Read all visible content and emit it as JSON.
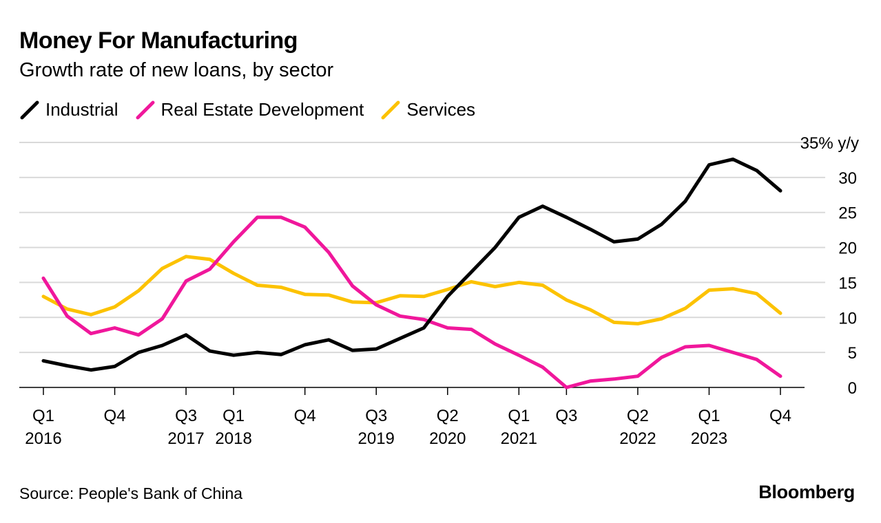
{
  "header": {
    "title": "Money For Manufacturing",
    "subtitle": "Growth rate of new loans, by sector"
  },
  "footer": {
    "source": "Source: People's Bank of China",
    "brand": "Bloomberg"
  },
  "colors": {
    "Industrial": "#000000",
    "Real Estate Development": "#f0179b",
    "Services": "#fcc200",
    "grid": "#d9d9d9"
  },
  "chart_data": {
    "type": "line",
    "title": "Money For Manufacturing",
    "subtitle": "Growth rate of new loans, by sector",
    "unit_label": "35% y/y",
    "ylim": [
      0,
      35
    ],
    "y_ticks": [
      0,
      5,
      10,
      15,
      20,
      25,
      30
    ],
    "grid": true,
    "legend_position": "top-left",
    "x": [
      "Q1 2016",
      "Q2 2016",
      "Q3 2016",
      "Q4 2016",
      "Q1 2017",
      "Q2 2017",
      "Q3 2017",
      "Q4 2017",
      "Q1 2018",
      "Q2 2018",
      "Q3 2018",
      "Q4 2018",
      "Q1 2019",
      "Q2 2019",
      "Q3 2019",
      "Q4 2019",
      "Q1 2020",
      "Q2 2020",
      "Q3 2020",
      "Q4 2020",
      "Q1 2021",
      "Q2 2021",
      "Q3 2021",
      "Q4 2021",
      "Q1 2022",
      "Q2 2022",
      "Q3 2022",
      "Q4 2022",
      "Q1 2023",
      "Q2 2023",
      "Q3 2023",
      "Q4 2023"
    ],
    "x_tick_labels": [
      {
        "index": 0,
        "quarter": "Q1",
        "year": "2016"
      },
      {
        "index": 3,
        "quarter": "Q4",
        "year": ""
      },
      {
        "index": 6,
        "quarter": "Q3",
        "year": "2017"
      },
      {
        "index": 8,
        "quarter": "Q1",
        "year": "2018"
      },
      {
        "index": 11,
        "quarter": "Q4",
        "year": ""
      },
      {
        "index": 14,
        "quarter": "Q3",
        "year": "2019"
      },
      {
        "index": 17,
        "quarter": "Q2",
        "year": "2020"
      },
      {
        "index": 20,
        "quarter": "Q1",
        "year": "2021"
      },
      {
        "index": 22,
        "quarter": "Q3",
        "year": ""
      },
      {
        "index": 25,
        "quarter": "Q2",
        "year": "2022"
      },
      {
        "index": 28,
        "quarter": "Q1",
        "year": "2023"
      },
      {
        "index": 31,
        "quarter": "Q4",
        "year": ""
      }
    ],
    "series": [
      {
        "name": "Industrial",
        "values": [
          3.8,
          3.1,
          2.5,
          3.0,
          5.0,
          6.0,
          7.5,
          5.2,
          4.6,
          5.0,
          4.7,
          6.1,
          6.8,
          5.3,
          5.5,
          7.0,
          8.5,
          13.0,
          16.5,
          20.0,
          24.3,
          25.9,
          24.3,
          22.6,
          20.8,
          21.2,
          23.3,
          26.6,
          31.8,
          32.6,
          31.0,
          28.1
        ]
      },
      {
        "name": "Real Estate Development",
        "values": [
          15.6,
          10.2,
          7.7,
          8.5,
          7.5,
          9.8,
          15.2,
          16.9,
          20.8,
          24.3,
          24.3,
          22.9,
          19.3,
          14.5,
          11.8,
          10.2,
          9.7,
          8.5,
          8.3,
          6.2,
          4.6,
          2.9,
          0.0,
          0.9,
          1.2,
          1.6,
          4.3,
          5.8,
          6.0,
          5.0,
          4.0,
          1.6
        ]
      },
      {
        "name": "Services",
        "values": [
          13.0,
          11.2,
          10.4,
          11.5,
          13.8,
          17.0,
          18.7,
          18.3,
          16.3,
          14.6,
          14.3,
          13.3,
          13.2,
          12.2,
          12.1,
          13.1,
          13.0,
          14.0,
          15.1,
          14.4,
          15.0,
          14.6,
          12.5,
          11.1,
          9.3,
          9.1,
          9.8,
          11.3,
          13.9,
          14.1,
          13.4,
          10.6
        ]
      }
    ]
  }
}
